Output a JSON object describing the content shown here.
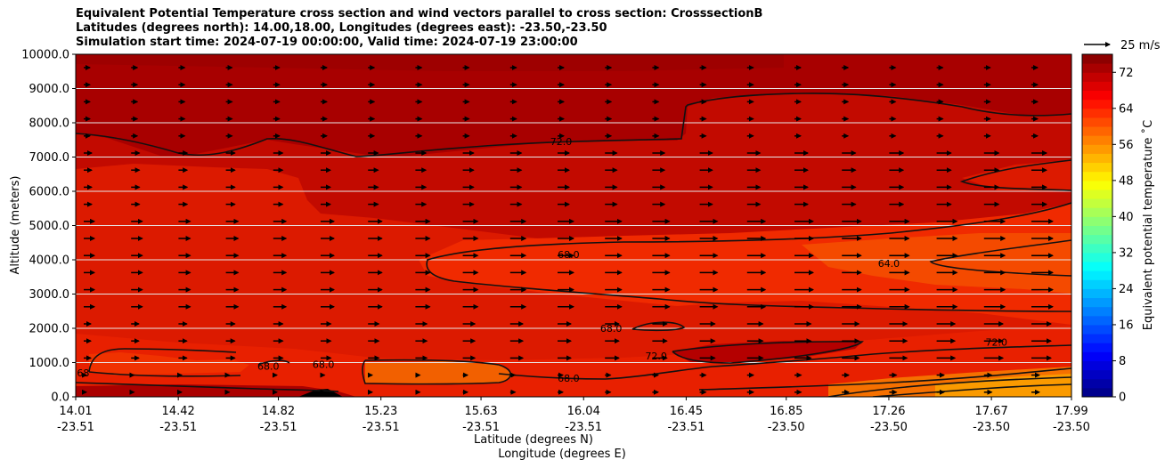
{
  "chart_data": {
    "type": "heatmap",
    "title_lines": [
      "Equivalent Potential Temperature cross section and wind vectors parallel to cross section: CrosssectionB",
      "Latitudes (degrees north): 14.00,18.00, Longitudes (degrees east): -23.50,-23.50",
      "Simulation start time: 2024-07-19 00:00:00, Valid time: 2024-07-19 23:00:00"
    ],
    "ylabel": "Altitude (meters)",
    "ylim": [
      0,
      10000
    ],
    "y_ticks": [
      "0.0",
      "1000.0",
      "2000.0",
      "3000.0",
      "4000.0",
      "5000.0",
      "6000.0",
      "7000.0",
      "8000.0",
      "9000.0",
      "10000.0"
    ],
    "x_ticks": [
      {
        "lat": "14.01",
        "lon": "-23.51"
      },
      {
        "lat": "14.42",
        "lon": "-23.51"
      },
      {
        "lat": "14.82",
        "lon": "-23.51"
      },
      {
        "lat": "15.23",
        "lon": "-23.51"
      },
      {
        "lat": "15.63",
        "lon": "-23.51"
      },
      {
        "lat": "16.04",
        "lon": "-23.51"
      },
      {
        "lat": "16.45",
        "lon": "-23.51"
      },
      {
        "lat": "16.85",
        "lon": "-23.50"
      },
      {
        "lat": "17.26",
        "lon": "-23.50"
      },
      {
        "lat": "17.67",
        "lon": "-23.50"
      },
      {
        "lat": "17.99",
        "lon": "-23.50"
      }
    ],
    "xlabel_lat": "Latitude (degrees N)",
    "xlabel_lon": "Longitude (degrees E)",
    "xlim": [
      14.01,
      17.99
    ],
    "colorbar": {
      "label": "Equivalent potential temperature ˚C",
      "range": [
        0,
        76
      ],
      "ticks": [
        "0",
        "8",
        "16",
        "24",
        "32",
        "40",
        "48",
        "56",
        "64",
        "72"
      ]
    },
    "wind_key_label": "25 m/s",
    "contour_labels": [
      {
        "text": "72.0",
        "lat": 15.95,
        "alt": 7450
      },
      {
        "text": "68.0",
        "lat": 15.98,
        "alt": 4150
      },
      {
        "text": "68.0",
        "lat": 15.98,
        "alt": 550
      },
      {
        "text": "64.0",
        "lat": 17.26,
        "alt": 3900
      },
      {
        "text": "68.0",
        "lat": 16.15,
        "alt": 2000
      },
      {
        "text": "72.0",
        "lat": 16.33,
        "alt": 1200
      },
      {
        "text": "72.0",
        "lat": 17.69,
        "alt": 1600
      },
      {
        "text": "68.0",
        "lat": 14.78,
        "alt": 900
      },
      {
        "text": "68.0",
        "lat": 15.0,
        "alt": 950
      },
      {
        "text": "68",
        "lat": 14.04,
        "alt": 700
      }
    ]
  }
}
